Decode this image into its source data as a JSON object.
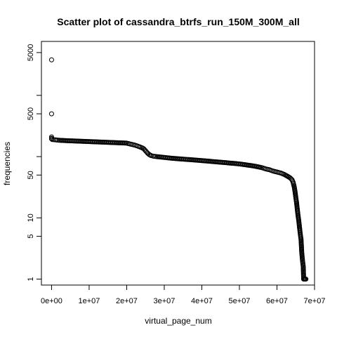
{
  "chart_data": {
    "type": "scatter",
    "title": "Scatter plot of cassandra_btrfs_run_150M_300M_all",
    "xlabel": "virtual_page_num",
    "ylabel": "frequencies",
    "x_scale": "linear",
    "y_scale": "log",
    "xlim": [
      -2700000,
      70000000
    ],
    "ylim": [
      0.8,
      7600
    ],
    "x_ticks": [
      0,
      10000000,
      20000000,
      30000000,
      40000000,
      50000000,
      60000000,
      70000000
    ],
    "x_tick_labels": [
      "0e+00",
      "1e+07",
      "2e+07",
      "3e+07",
      "4e+07",
      "5e+07",
      "6e+07",
      "7e+07"
    ],
    "y_ticks": [
      1,
      5,
      10,
      50,
      500,
      5000
    ],
    "y_tick_labels": [
      "1",
      "5",
      "10",
      "50",
      "500",
      "5000"
    ],
    "y_minor_ticks": [
      100,
      1000
    ],
    "grid": false,
    "legend": "none",
    "point_color": "#000000",
    "marker": "open-circle",
    "series": [
      {
        "x": [
          0,
          0,
          0,
          0,
          0,
          200000,
          1000000,
          2000000,
          4000000,
          6000000,
          8000000,
          10000000,
          12000000,
          14000000,
          16000000,
          18000000,
          20000000,
          21000000,
          22000000,
          23000000,
          24000000,
          24500000,
          25000000,
          25500000,
          26000000,
          26500000,
          27000000,
          28000000,
          30000000,
          32000000,
          34000000,
          36000000,
          38000000,
          40000000,
          42000000,
          44000000,
          46000000,
          48000000,
          50000000,
          52000000,
          54000000,
          56000000,
          57000000,
          58000000,
          59000000,
          60000000,
          61000000,
          62000000,
          62500000,
          63000000,
          63500000,
          64000000,
          64300000,
          64600000,
          64800000,
          65000000,
          65200000,
          65400000,
          65600000,
          65800000,
          66000000,
          66200000,
          66400000,
          66500000,
          66600000,
          66800000,
          67000000,
          67100000,
          67300000,
          67500000,
          67700000
        ],
        "y": [
          3800,
          500,
          210,
          200,
          195,
          190,
          188,
          185,
          182,
          180,
          178,
          176,
          174,
          172,
          170,
          168,
          166,
          160,
          155,
          148,
          140,
          135,
          125,
          115,
          108,
          104,
          102,
          100,
          97,
          94,
          92,
          90,
          88,
          86,
          84,
          82,
          80,
          78,
          76,
          73,
          70,
          66,
          63,
          61,
          58,
          56,
          54,
          51,
          49,
          47,
          45,
          42,
          38,
          32,
          27,
          22,
          18,
          14,
          11,
          9,
          7,
          5.5,
          4.5,
          3.5,
          2.7,
          2,
          1.6,
          1,
          1,
          1,
          1
        ]
      }
    ]
  }
}
